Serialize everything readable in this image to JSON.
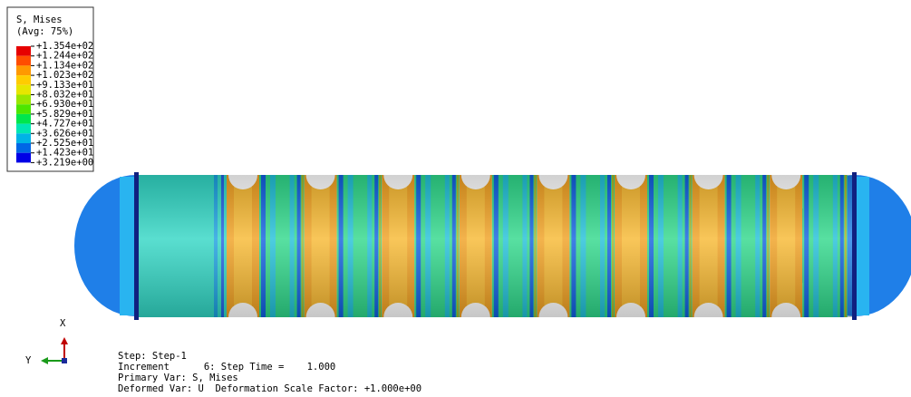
{
  "legend": {
    "title": "S, Mises",
    "subtitle": "(Avg: 75%)",
    "labels": [
      "+1.354e+02",
      "+1.244e+02",
      "+1.134e+02",
      "+1.023e+02",
      "+9.133e+01",
      "+8.032e+01",
      "+6.930e+01",
      "+5.829e+01",
      "+4.727e+01",
      "+3.626e+01",
      "+2.525e+01",
      "+1.423e+01",
      "+3.219e+00"
    ]
  },
  "triad": {
    "x": "X",
    "y": "Y"
  },
  "info": {
    "lines": [
      "Step: Step-1",
      "Increment      6: Step Time =    1.000",
      "Primary Var: S, Mises",
      "Deformed Var: U  Deformation Scale Factor: +1.000e+00"
    ]
  }
}
